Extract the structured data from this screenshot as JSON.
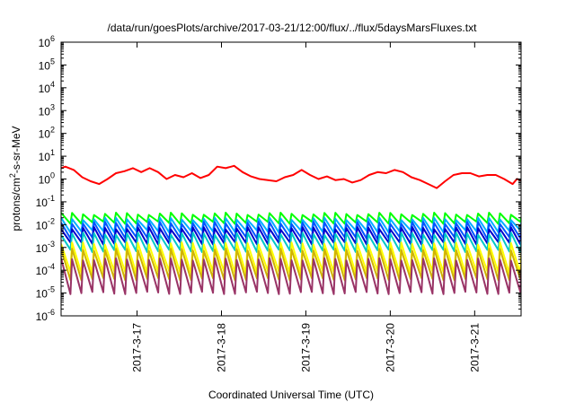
{
  "chart_data": {
    "type": "line",
    "title": "/data/run/goesPlots/archive/2017-03-21/12:00/flux/../flux/5daysMarsFluxes.txt",
    "xlabel": "Coordinated Universal Time (UTC)",
    "ylabel": {
      "prefix": "protons/cm",
      "sup": "2",
      "suffix": "-s-sr-MeV"
    },
    "yscale": "log",
    "ylim_exp": [
      -6,
      6
    ],
    "y_tick_base": "10",
    "y_tick_exponents": [
      "-6",
      "-5",
      "-4",
      "-3",
      "-2",
      "-1",
      "0",
      "1",
      "2",
      "3",
      "4",
      "5",
      "6"
    ],
    "xlim_days": [
      16.1,
      21.55
    ],
    "x_tick_days": [
      17,
      18,
      19,
      20,
      21
    ],
    "x_tick_labels": [
      "2017-3-17",
      "2017-3-18",
      "2017-3-19",
      "2017-3-20",
      "2017-3-21"
    ],
    "grid": false,
    "legend": "none",
    "series": [
      {
        "color": "#ff0000",
        "style": "trend",
        "period": 0,
        "points": [
          [
            16.1,
            3.0
          ],
          [
            16.15,
            3.5
          ],
          [
            16.25,
            2.5
          ],
          [
            16.35,
            1.2
          ],
          [
            16.45,
            0.8
          ],
          [
            16.55,
            0.6
          ],
          [
            16.65,
            1.0
          ],
          [
            16.75,
            1.8
          ],
          [
            16.85,
            2.2
          ],
          [
            16.95,
            3.0
          ],
          [
            17.05,
            2.0
          ],
          [
            17.15,
            3.0
          ],
          [
            17.25,
            2.0
          ],
          [
            17.35,
            1.0
          ],
          [
            17.45,
            1.5
          ],
          [
            17.55,
            1.2
          ],
          [
            17.65,
            1.8
          ],
          [
            17.75,
            1.1
          ],
          [
            17.85,
            1.5
          ],
          [
            17.95,
            3.5
          ],
          [
            18.05,
            3.0
          ],
          [
            18.15,
            3.8
          ],
          [
            18.25,
            2.0
          ],
          [
            18.35,
            1.3
          ],
          [
            18.45,
            1.0
          ],
          [
            18.55,
            0.9
          ],
          [
            18.65,
            0.8
          ],
          [
            18.75,
            1.2
          ],
          [
            18.85,
            1.5
          ],
          [
            18.95,
            2.5
          ],
          [
            19.05,
            1.5
          ],
          [
            19.15,
            1.0
          ],
          [
            19.25,
            1.3
          ],
          [
            19.35,
            0.9
          ],
          [
            19.45,
            1.0
          ],
          [
            19.55,
            0.7
          ],
          [
            19.65,
            0.9
          ],
          [
            19.75,
            1.5
          ],
          [
            19.85,
            2.0
          ],
          [
            19.95,
            1.8
          ],
          [
            20.05,
            2.5
          ],
          [
            20.15,
            2.0
          ],
          [
            20.25,
            1.2
          ],
          [
            20.35,
            0.9
          ],
          [
            20.45,
            0.6
          ],
          [
            20.55,
            0.4
          ],
          [
            20.65,
            0.8
          ],
          [
            20.75,
            1.5
          ],
          [
            20.85,
            1.8
          ],
          [
            20.95,
            1.8
          ],
          [
            21.05,
            1.3
          ],
          [
            21.15,
            1.5
          ],
          [
            21.25,
            1.5
          ],
          [
            21.35,
            1.0
          ],
          [
            21.45,
            0.6
          ],
          [
            21.5,
            1.0
          ],
          [
            21.55,
            0.9
          ]
        ]
      },
      {
        "color": "#00ff00",
        "style": "sawtooth",
        "period": 0.13,
        "hi": 0.03,
        "lo": 0.012
      },
      {
        "color": "#00b0ff",
        "style": "sawtooth",
        "period": 0.13,
        "hi": 0.018,
        "lo": 0.005
      },
      {
        "color": "#0055ff",
        "style": "sawtooth",
        "period": 0.13,
        "hi": 0.012,
        "lo": 0.0025
      },
      {
        "color": "#0000cc",
        "style": "sawtooth",
        "period": 0.13,
        "hi": 0.007,
        "lo": 0.0015
      },
      {
        "color": "#00c8c8",
        "style": "sawtooth",
        "period": 0.13,
        "hi": 0.004,
        "lo": 0.0007
      },
      {
        "color": "#ffff00",
        "style": "sawtooth",
        "period": 0.13,
        "hi": 0.0015,
        "lo": 8e-05
      },
      {
        "color": "#d0b400",
        "style": "sawtooth",
        "period": 0.13,
        "hi": 0.0008,
        "lo": 4e-05
      },
      {
        "color": "#993366",
        "style": "sawtooth",
        "period": 0.13,
        "hi": 0.0003,
        "lo": 1e-05
      }
    ]
  }
}
